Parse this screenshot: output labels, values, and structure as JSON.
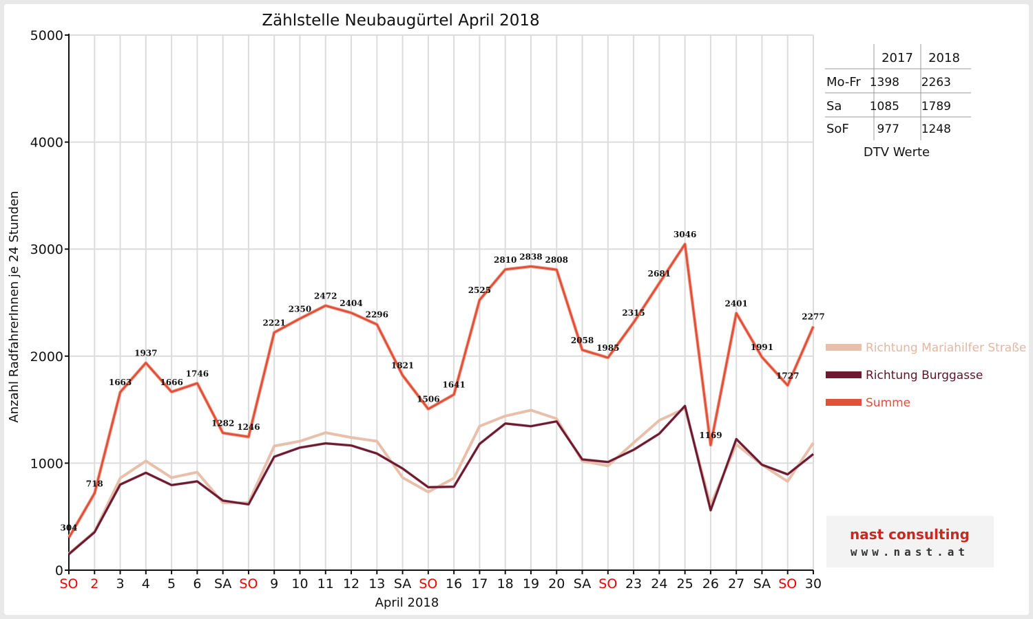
{
  "chart_data": {
    "type": "line",
    "title": "Zählstelle Neubaugürtel April 2018",
    "xlabel": "April 2018",
    "ylabel": "Anzahl RadfahrerInnen je 24 Stunden",
    "ylim": [
      0,
      5000
    ],
    "yticks": [
      0,
      1000,
      2000,
      3000,
      4000,
      5000
    ],
    "categories": [
      "SO",
      "2",
      "3",
      "4",
      "5",
      "6",
      "SA",
      "SO",
      "9",
      "10",
      "11",
      "12",
      "13",
      "SA",
      "SO",
      "16",
      "17",
      "18",
      "19",
      "20",
      "SA",
      "SO",
      "23",
      "24",
      "25",
      "26",
      "27",
      "SA",
      "SO",
      "30"
    ],
    "red_categories": [
      0,
      1,
      7,
      14,
      21,
      28
    ],
    "series": [
      {
        "name": "Richtung Mariahilfer Straße",
        "color": "#e8bfaa",
        "values": [
          155,
          360,
          860,
          1020,
          865,
          915,
          630,
          630,
          1160,
          1205,
          1285,
          1240,
          1205,
          865,
          730,
          860,
          1345,
          1440,
          1495,
          1415,
          1020,
          975,
          1190,
          1400,
          1510,
          610,
          1175,
          985,
          830,
          1190
        ]
      },
      {
        "name": "Richtung Burggasse",
        "color": "#6b1a30",
        "values": [
          150,
          355,
          800,
          910,
          795,
          830,
          650,
          615,
          1060,
          1145,
          1185,
          1165,
          1090,
          950,
          775,
          780,
          1180,
          1370,
          1345,
          1390,
          1035,
          1010,
          1125,
          1275,
          1535,
          560,
          1225,
          985,
          895,
          1085
        ]
      },
      {
        "name": "Summe",
        "color": "#e0503a",
        "values": [
          304,
          718,
          1663,
          1937,
          1666,
          1746,
          1282,
          1246,
          2221,
          2350,
          2472,
          2404,
          2296,
          1821,
          1506,
          1641,
          2525,
          2810,
          2838,
          2808,
          2058,
          1985,
          2315,
          2681,
          3046,
          1169,
          2401,
          1991,
          1727,
          2277
        ],
        "labels": [
          "304",
          "718",
          "1663",
          "1937",
          "1666",
          "1746",
          "1282",
          "1246",
          "2221",
          "2350",
          "2472",
          "2404",
          "2296",
          "1821",
          "1506",
          "1641",
          "2525",
          "2810",
          "2838",
          "2808",
          "2058",
          "1985",
          "2315",
          "2681",
          "3046",
          "1169",
          "2401",
          "1991",
          "1727",
          "2277"
        ]
      }
    ],
    "legend_position": "right"
  },
  "dtv_table": {
    "headers": [
      "2017",
      "2018"
    ],
    "rows": [
      {
        "label": "Mo-Fr",
        "v2017": "1398",
        "v2018": "2263"
      },
      {
        "label": "Sa",
        "v2017": "1085",
        "v2018": "1789"
      },
      {
        "label": "SoF",
        "v2017": "977",
        "v2018": "1248"
      }
    ],
    "caption": "DTV Werte"
  },
  "logo": {
    "brand": "nast consulting",
    "url": "www.nast.at"
  }
}
